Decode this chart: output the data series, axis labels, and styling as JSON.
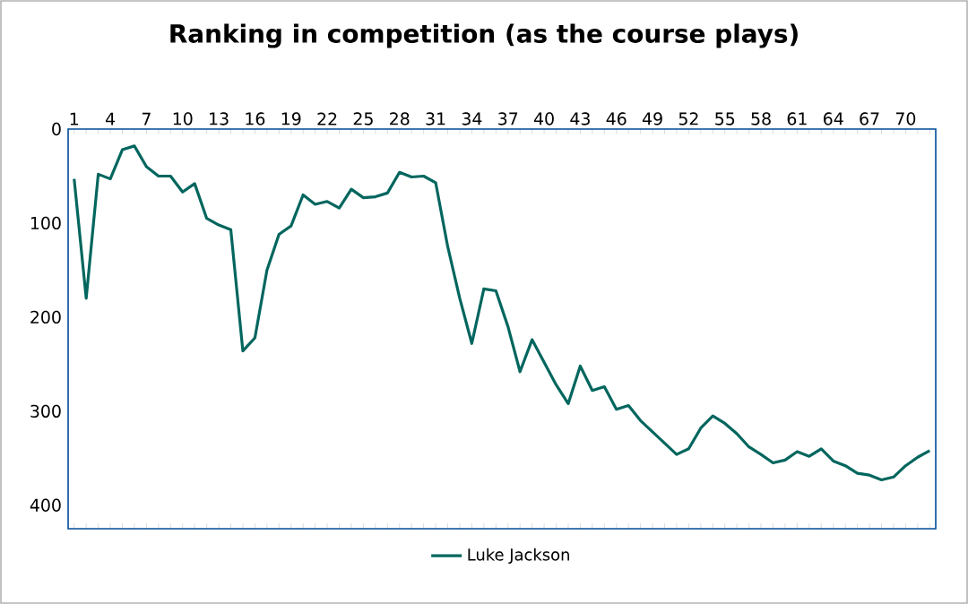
{
  "chart_data": {
    "type": "line",
    "title": "Ranking in competition (as the course plays)",
    "categories": [
      "1",
      null,
      null,
      "4",
      null,
      null,
      "7",
      null,
      null,
      "10",
      null,
      null,
      "13",
      null,
      null,
      "16",
      null,
      null,
      "19",
      null,
      null,
      "22",
      null,
      null,
      "25",
      null,
      null,
      "28",
      null,
      null,
      "31",
      null,
      null,
      "34",
      null,
      null,
      "37",
      null,
      null,
      "40",
      null,
      null,
      "43",
      null,
      null,
      "46",
      null,
      null,
      "49",
      null,
      null,
      "52",
      null,
      null,
      "55",
      null,
      null,
      "58",
      null,
      null,
      "61",
      null,
      null,
      "64",
      null,
      null,
      "67",
      null,
      null,
      "70",
      null,
      null
    ],
    "series": [
      {
        "name": "Luke Jackson",
        "color": "#00665e",
        "values": [
          53,
          180,
          48,
          53,
          22,
          18,
          40,
          50,
          50,
          67,
          58,
          95,
          102,
          107,
          236,
          222,
          150,
          112,
          103,
          70,
          80,
          77,
          84,
          64,
          73,
          72,
          68,
          46,
          51,
          50,
          57,
          125,
          180,
          228,
          170,
          172,
          210,
          258,
          224,
          248,
          272,
          292,
          252,
          278,
          274,
          298,
          294,
          310,
          322,
          334,
          346,
          340,
          318,
          305,
          313,
          324,
          338,
          346,
          355,
          352,
          343,
          348,
          340,
          353,
          358,
          366,
          368,
          373,
          370,
          358,
          349,
          342
        ]
      }
    ],
    "ylim": [
      425,
      0
    ],
    "yticks": [
      0,
      100,
      200,
      300,
      400
    ],
    "grid": false,
    "legend": "bottom",
    "marker": "none",
    "line_style": "solid"
  }
}
